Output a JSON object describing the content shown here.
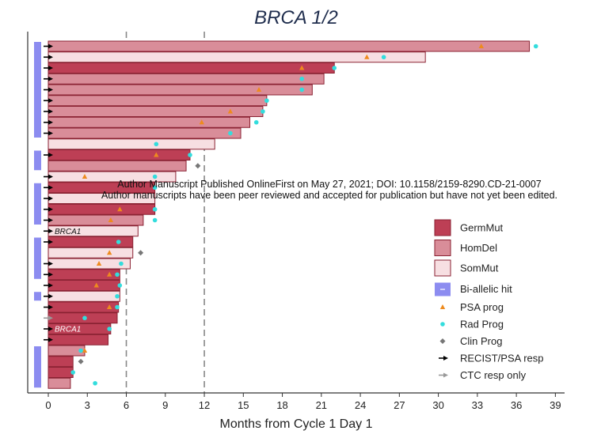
{
  "chart_data": {
    "type": "swimmer",
    "title": "BRCA 1/2",
    "xlabel": "Months from Cycle 1 Day 1",
    "xlim": [
      -1,
      40
    ],
    "xticks": [
      0,
      3,
      6,
      9,
      12,
      15,
      18,
      21,
      24,
      27,
      30,
      33,
      36,
      39
    ],
    "reference_lines": [
      6,
      12
    ],
    "colors": {
      "GermMut": "#bd3f55",
      "HomDel": "#d98d99",
      "SomMut": "#f7dfe2",
      "border": "#8a2233",
      "biallelic": "#8c8cf0",
      "psa": "#ee8b1e",
      "rad": "#33dddd",
      "clin": "#777777",
      "recist": "#000000",
      "ctc": "#999999"
    },
    "patients": [
      {
        "duration": 37.0,
        "mutation": "HomDel",
        "biallelic": true,
        "psa": 33.3,
        "rad": 37.5,
        "response": "recist"
      },
      {
        "duration": 29.0,
        "mutation": "SomMut",
        "biallelic": true,
        "psa": 24.5,
        "rad": 25.8,
        "response": "recist"
      },
      {
        "duration": 22.0,
        "mutation": "GermMut",
        "biallelic": true,
        "psa": 19.5,
        "rad": 22.0,
        "response": "recist"
      },
      {
        "duration": 21.2,
        "mutation": "HomDel",
        "biallelic": true,
        "rad": 19.5,
        "response": "recist"
      },
      {
        "duration": 20.3,
        "mutation": "HomDel",
        "biallelic": true,
        "psa": 16.2,
        "rad": 19.5,
        "response": "recist"
      },
      {
        "duration": 16.8,
        "mutation": "HomDel",
        "biallelic": true,
        "rad": 16.8,
        "response": "recist"
      },
      {
        "duration": 16.5,
        "mutation": "HomDel",
        "biallelic": true,
        "psa": 14.0,
        "rad": 16.5,
        "response": "recist"
      },
      {
        "duration": 15.5,
        "mutation": "HomDel",
        "biallelic": true,
        "psa": 11.8,
        "rad": 16.0,
        "response": "recist"
      },
      {
        "duration": 14.8,
        "mutation": "HomDel",
        "biallelic": true,
        "rad": 14.0,
        "response": "recist"
      },
      {
        "duration": 12.8,
        "mutation": "SomMut",
        "biallelic": false,
        "rad": 8.3,
        "response": "none"
      },
      {
        "duration": 10.9,
        "mutation": "GermMut",
        "biallelic": true,
        "psa": 8.3,
        "rad": 10.9,
        "response": "recist"
      },
      {
        "duration": 10.6,
        "mutation": "HomDel",
        "biallelic": true,
        "clin": 11.5,
        "response": "none"
      },
      {
        "duration": 9.8,
        "mutation": "SomMut",
        "biallelic": false,
        "psa": 2.8,
        "rad": 8.2,
        "response": "recist"
      },
      {
        "duration": 8.2,
        "mutation": "GermMut",
        "biallelic": true,
        "rad": 8.2,
        "response": "recist"
      },
      {
        "duration": 8.2,
        "mutation": "SomMut",
        "biallelic": true,
        "response": "recist"
      },
      {
        "duration": 8.2,
        "mutation": "GermMut",
        "biallelic": true,
        "psa": 5.5,
        "rad": 8.2,
        "response": "recist"
      },
      {
        "duration": 7.3,
        "mutation": "HomDel",
        "biallelic": true,
        "psa": 4.8,
        "rad": 8.2,
        "response": "recist"
      },
      {
        "duration": 6.9,
        "mutation": "SomMut",
        "biallelic": false,
        "label": "BRCA1",
        "response": "recist"
      },
      {
        "duration": 6.5,
        "mutation": "GermMut",
        "biallelic": true,
        "rad": 5.4,
        "response": "recist"
      },
      {
        "duration": 6.5,
        "mutation": "SomMut",
        "biallelic": true,
        "psa": 4.7,
        "clin": 7.1,
        "response": "none"
      },
      {
        "duration": 6.3,
        "mutation": "SomMut",
        "biallelic": true,
        "psa": 3.9,
        "rad": 5.6,
        "response": "recist"
      },
      {
        "duration": 5.5,
        "mutation": "GermMut",
        "biallelic": true,
        "psa": 4.7,
        "rad": 5.3,
        "response": "recist"
      },
      {
        "duration": 5.5,
        "mutation": "GermMut",
        "biallelic": false,
        "psa": 3.7,
        "rad": 5.5,
        "response": "recist"
      },
      {
        "duration": 5.5,
        "mutation": "SomMut",
        "biallelic": true,
        "rad": 5.3,
        "response": "recist"
      },
      {
        "duration": 5.4,
        "mutation": "GermMut",
        "biallelic": false,
        "psa": 4.7,
        "rad": 5.3,
        "response": "recist"
      },
      {
        "duration": 5.3,
        "mutation": "GermMut",
        "biallelic": false,
        "rad": 2.8,
        "response": "ctc"
      },
      {
        "duration": 4.8,
        "mutation": "GermMut",
        "biallelic": false,
        "label": "BRCA1",
        "rad": 4.7,
        "response": "recist"
      },
      {
        "duration": 4.6,
        "mutation": "GermMut",
        "biallelic": false,
        "response": "recist"
      },
      {
        "duration": 2.8,
        "mutation": "HomDel",
        "biallelic": true,
        "psa": 2.8,
        "rad": 2.5,
        "response": "none"
      },
      {
        "duration": 1.9,
        "mutation": "GermMut",
        "biallelic": true,
        "clin": 2.5,
        "response": "none"
      },
      {
        "duration": 1.9,
        "mutation": "GermMut",
        "biallelic": true,
        "rad": 1.9,
        "response": "none"
      },
      {
        "duration": 1.7,
        "mutation": "HomDel",
        "biallelic": true,
        "rad": 3.6,
        "response": "none"
      }
    ],
    "legend": {
      "position": "right",
      "entries": [
        {
          "key": "GermMut",
          "label": "GermMut",
          "kind": "box"
        },
        {
          "key": "HomDel",
          "label": "HomDel",
          "kind": "box"
        },
        {
          "key": "SomMut",
          "label": "SomMut",
          "kind": "box"
        },
        {
          "key": "biallelic",
          "label": "Bi-allelic hit",
          "kind": "biallelic"
        },
        {
          "key": "psa",
          "label": "PSA prog",
          "kind": "triangle"
        },
        {
          "key": "rad",
          "label": "Rad Prog",
          "kind": "circle"
        },
        {
          "key": "clin",
          "label": "Clin Prog",
          "kind": "diamond"
        },
        {
          "key": "recist",
          "label": "RECIST/PSA resp",
          "kind": "arrow"
        },
        {
          "key": "ctc",
          "label": "CTC resp only",
          "kind": "arrow-gray"
        }
      ]
    }
  },
  "watermark": {
    "line1": "Author Manuscript Published OnlineFirst on May 27, 2021; DOI: 10.1158/2159-8290.CD-21-0007",
    "line2": "Author manuscripts have been peer reviewed and accepted for publication but have not yet been edited."
  }
}
